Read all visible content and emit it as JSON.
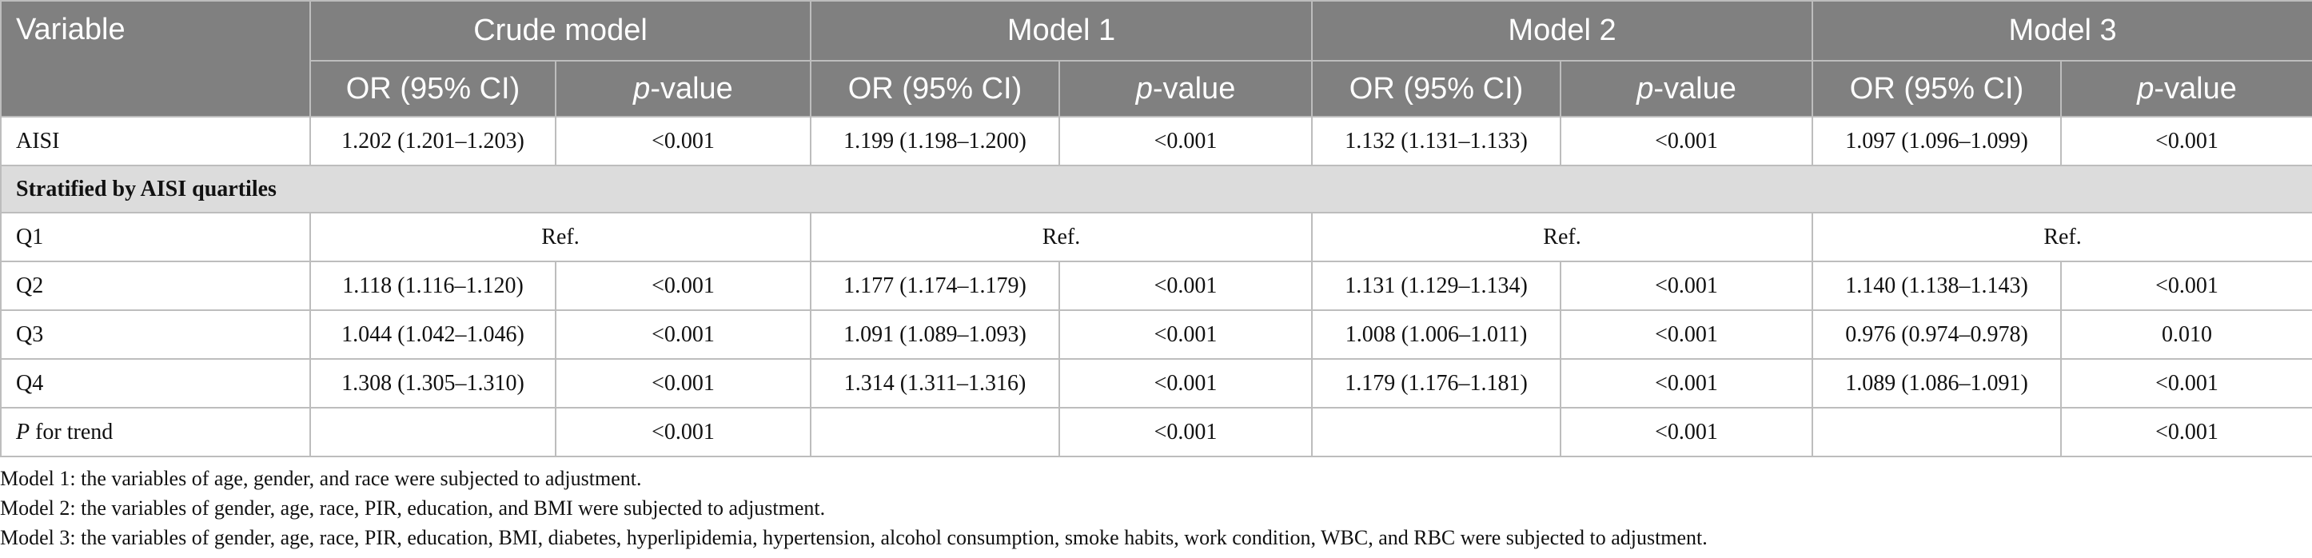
{
  "header": {
    "variable": "Variable",
    "groups": [
      "Crude model",
      "Model 1",
      "Model 2",
      "Model 3"
    ],
    "or_label": "OR (95% CI)",
    "p_italic": "p",
    "p_suffix": "-value"
  },
  "aisi_row": {
    "label": "AISI",
    "cells": [
      "1.202 (1.201–1.203)",
      "<0.001",
      "1.199 (1.198–1.200)",
      "<0.001",
      "1.132 (1.131–1.133)",
      "<0.001",
      "1.097 (1.096–1.099)",
      "<0.001"
    ]
  },
  "section_label": "Stratified by AISI quartiles",
  "q1_row": {
    "label": "Q1",
    "refs": [
      "Ref.",
      "Ref.",
      "Ref.",
      "Ref."
    ]
  },
  "quartile_rows": [
    {
      "label": "Q2",
      "cells": [
        "1.118 (1.116–1.120)",
        "<0.001",
        "1.177 (1.174–1.179)",
        "<0.001",
        "1.131 (1.129–1.134)",
        "<0.001",
        "1.140 (1.138–1.143)",
        "<0.001"
      ]
    },
    {
      "label": "Q3",
      "cells": [
        "1.044 (1.042–1.046)",
        "<0.001",
        "1.091 (1.089–1.093)",
        "<0.001",
        "1.008 (1.006–1.011)",
        "<0.001",
        "0.976 (0.974–0.978)",
        "0.010"
      ]
    },
    {
      "label": "Q4",
      "cells": [
        "1.308 (1.305–1.310)",
        "<0.001",
        "1.314 (1.311–1.316)",
        "<0.001",
        "1.179 (1.176–1.181)",
        "<0.001",
        "1.089 (1.086–1.091)",
        "<0.001"
      ]
    }
  ],
  "trend_row": {
    "label_italic": "P",
    "label_rest": " for trend",
    "cells": [
      "",
      "<0.001",
      "",
      "<0.001",
      "",
      "<0.001",
      "",
      "<0.001"
    ]
  },
  "notes": [
    "Model 1: the variables of age, gender, and race were subjected to adjustment.",
    "Model 2: the variables of gender, age, race, PIR, education, and BMI were subjected to adjustment.",
    "Model 3: the variables of gender, age, race, PIR, education, BMI, diabetes, hyperlipidemia, hypertension, alcohol consumption, smoke habits, work condition, WBC, and RBC were subjected to adjustment."
  ]
}
